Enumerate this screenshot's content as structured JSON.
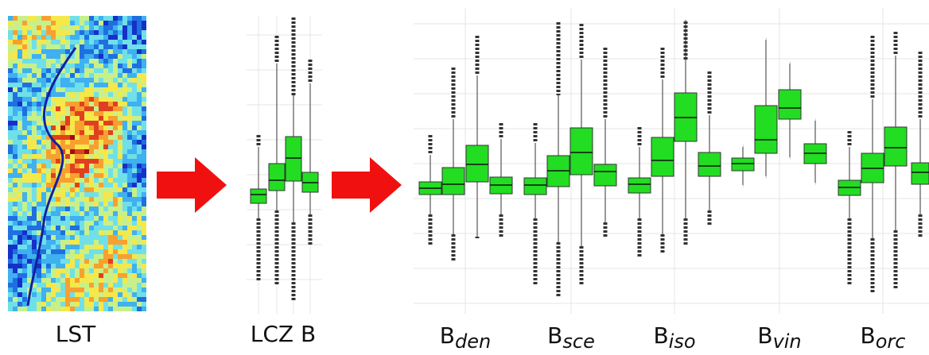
{
  "steps": [
    {
      "label": "LST"
    },
    {
      "label": "LCZ B"
    }
  ],
  "subclasses": [
    {
      "base": "B",
      "sub": "den"
    },
    {
      "base": "B",
      "sub": "sce"
    },
    {
      "base": "B",
      "sub": "iso"
    },
    {
      "base": "B",
      "sub": "vin"
    },
    {
      "base": "B",
      "sub": "orc"
    }
  ]
}
